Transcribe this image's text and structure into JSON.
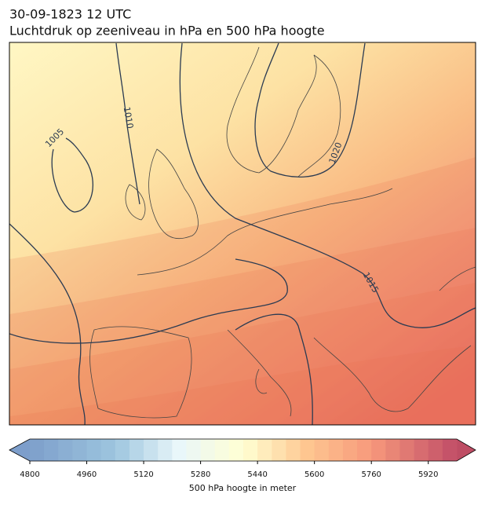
{
  "header": {
    "date": "30-09-1823 12 UTC",
    "title": "Luchtdruk op zeeniveau in hPa en 500 hPa hoogte"
  },
  "map": {
    "isobar_labels": [
      "1005",
      "1010",
      "1015",
      "1020"
    ]
  },
  "colorbar": {
    "label": "500 hPa hoogte in meter",
    "range": [
      4800,
      6000
    ],
    "ticks": [
      4800,
      4960,
      5120,
      5280,
      5440,
      5600,
      5760,
      5920
    ]
  }
}
